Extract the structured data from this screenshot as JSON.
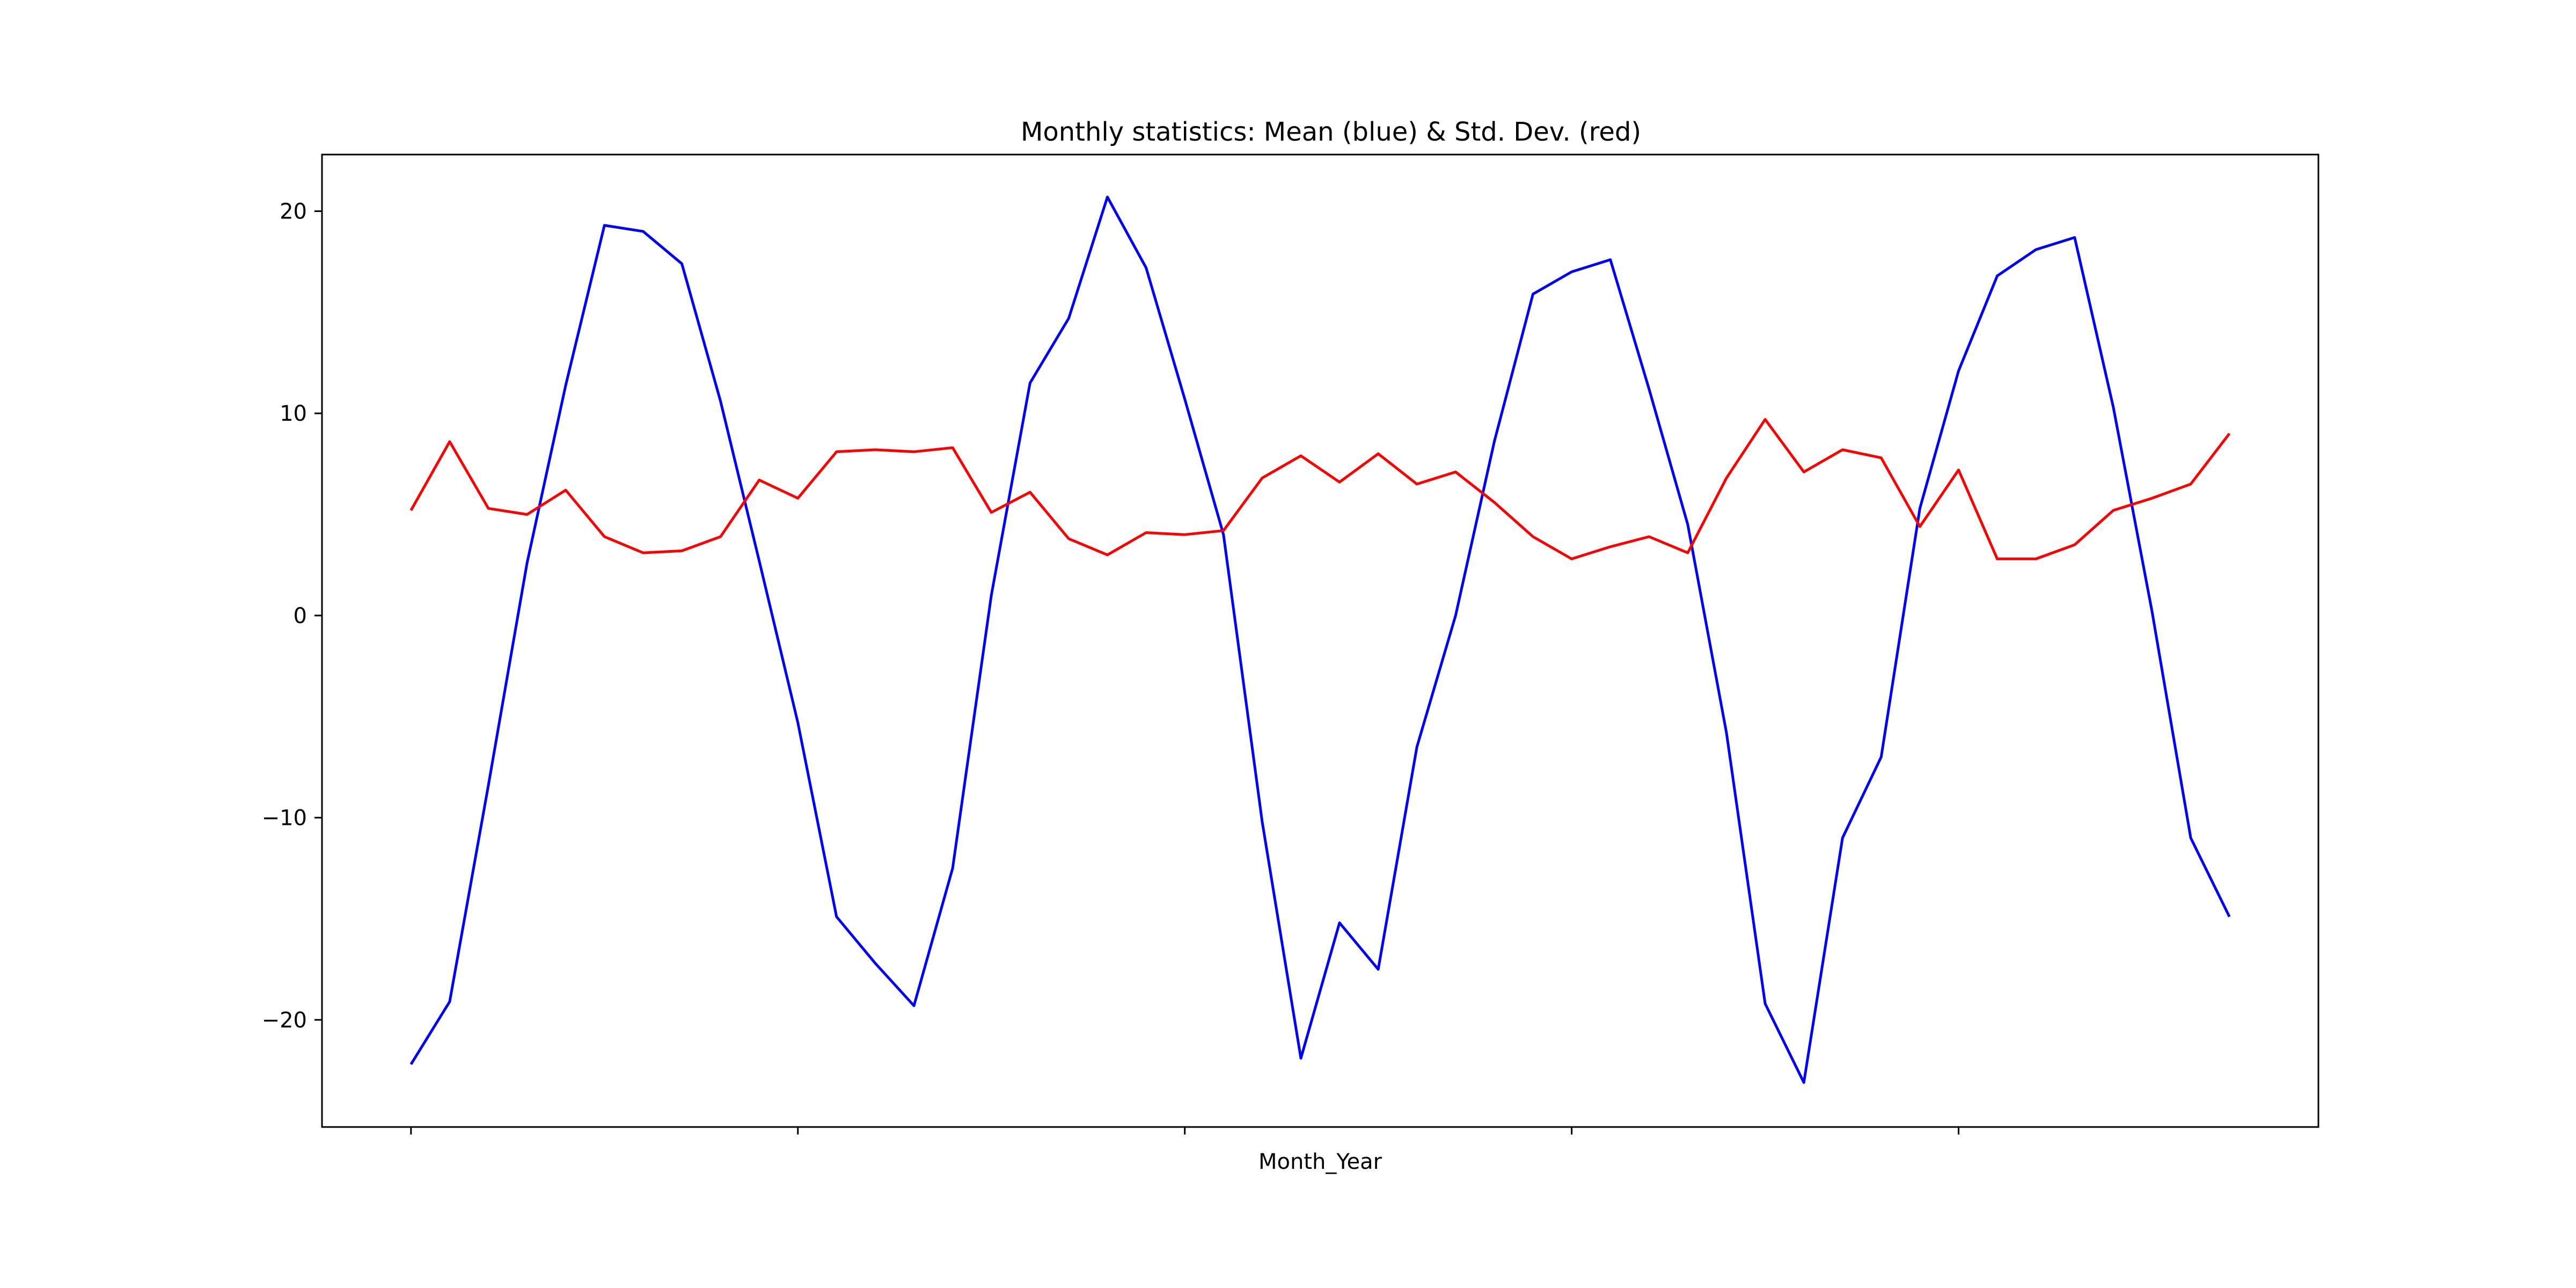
{
  "chart_data": {
    "type": "line",
    "title": "Monthly statistics: Mean (blue) & Std. Dev. (red)",
    "xlabel": "Month_Year",
    "ylabel": "",
    "ylim": [
      -25.3,
      22.8
    ],
    "yticks": [
      -20,
      -10,
      0,
      10,
      20
    ],
    "ytick_labels": [
      "−20",
      "−10",
      "0",
      "10",
      "20"
    ],
    "xlim": [
      -2.3,
      49.3
    ],
    "xticks": [
      0,
      10,
      20,
      30,
      40
    ],
    "grid": false,
    "series": [
      {
        "color": "#0000ff",
        "values": [
          -22.2,
          -19.1,
          -8.4,
          2.6,
          11.4,
          19.3,
          19.0,
          17.4,
          10.6,
          2.7,
          -5.3,
          -14.9,
          -17.2,
          -19.3,
          -12.5,
          1.0,
          11.5,
          14.7,
          20.7,
          17.2,
          10.7,
          4.0,
          -10.2,
          -21.9,
          -15.2,
          -17.5,
          -6.5,
          0.0,
          8.6,
          15.9,
          17.0,
          17.6,
          11.2,
          4.5,
          -5.8,
          -19.2,
          -23.1,
          -11.0,
          -7.0,
          5.3,
          12.1,
          16.8,
          18.1,
          18.7,
          10.3,
          0.2,
          -11.0,
          -14.9
        ]
      },
      {
        "color": "#ff0000",
        "values": [
          5.2,
          8.6,
          5.3,
          5.0,
          6.2,
          3.9,
          3.1,
          3.2,
          3.9,
          6.7,
          5.8,
          8.1,
          8.2,
          8.1,
          8.3,
          5.1,
          6.1,
          3.8,
          3.0,
          4.1,
          4.0,
          4.2,
          6.8,
          7.9,
          6.6,
          8.0,
          6.5,
          7.1,
          5.6,
          3.9,
          2.8,
          3.4,
          3.9,
          3.1,
          6.8,
          9.7,
          7.1,
          8.2,
          7.8,
          4.4,
          7.2,
          2.8,
          2.8,
          3.5,
          5.2,
          5.8,
          6.5,
          9.0
        ]
      }
    ]
  }
}
